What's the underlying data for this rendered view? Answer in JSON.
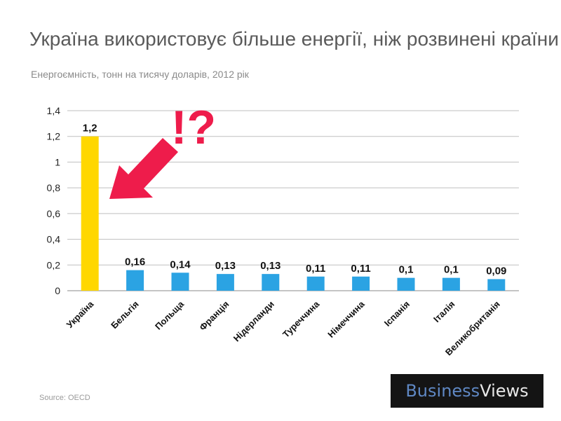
{
  "title": "Україна використовує більше енергії, ніж розвинені країни",
  "subtitle": "Енергоємність, тонн на тисячу доларів, 2012 рік",
  "source": "Source: OECD",
  "annotation": "!?",
  "logo": {
    "part1": "Business",
    "part2": "Views"
  },
  "colors": {
    "highlight": "#ffd700",
    "bar": "#2ba3e3",
    "arrow": "#ee1c4b",
    "grid": "#bfbfbf"
  },
  "chart_data": {
    "type": "bar",
    "categories": [
      "Україна",
      "Бельгія",
      "Польща",
      "Франція",
      "Нідерланди",
      "Туреччина",
      "Німеччина",
      "Іспанія",
      "Італія",
      "Великобританія"
    ],
    "values": [
      1.2,
      0.16,
      0.14,
      0.13,
      0.13,
      0.11,
      0.11,
      0.1,
      0.1,
      0.09
    ],
    "value_labels": [
      "1,2",
      "0,16",
      "0,14",
      "0,13",
      "0,13",
      "0,11",
      "0,11",
      "0,1",
      "0,1",
      "0,09"
    ],
    "ylim": [
      0,
      1.4
    ],
    "yticks": [
      0,
      0.2,
      0.4,
      0.6,
      0.8,
      1,
      1.2,
      1.4
    ],
    "ytick_labels": [
      "0",
      "0,2",
      "0,4",
      "0,6",
      "0,8",
      "1",
      "1,2",
      "1,4"
    ],
    "highlight_index": 0,
    "grid": true,
    "legend": "none"
  }
}
